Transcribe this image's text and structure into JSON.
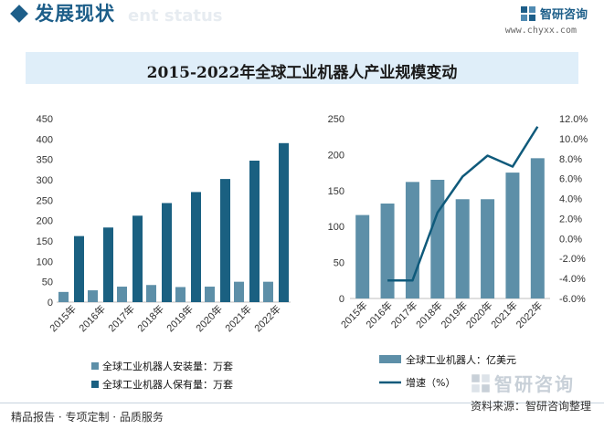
{
  "header": {
    "title": "发展现状",
    "ghost_subtitle": "ent status",
    "brand_name": "智研咨询",
    "brand_url": "www.chyxx.com"
  },
  "main_title": "2015-2022年全球工业机器人产业规模变动",
  "footer": {
    "left_text": "精品报告 · 专项定制 · 品质服务",
    "source": "资料来源：智研咨询整理",
    "logo_name": "智研咨询"
  },
  "colors": {
    "dark_bar": "#1a6081",
    "light_bar": "#5d8fa8",
    "line": "#0f5a7b",
    "title_bg": "#dfeef9",
    "brand": "#1d5e89"
  },
  "chart_data": [
    {
      "type": "bar",
      "categories": [
        "2015年",
        "2016年",
        "2017年",
        "2018年",
        "2019年",
        "2020年",
        "2021年",
        "2022年"
      ],
      "ylim": [
        0,
        450
      ],
      "yticks": [
        0,
        50,
        100,
        150,
        200,
        250,
        300,
        350,
        400,
        450
      ],
      "series": [
        {
          "name": "全球工业机器人安装量：万套",
          "color": "#5d8fa8",
          "values": [
            25,
            29,
            38,
            42,
            37,
            38,
            50,
            50
          ]
        },
        {
          "name": "全球工业机器人保有量：万套",
          "color": "#1a6081",
          "values": [
            162,
            183,
            212,
            243,
            270,
            302,
            347,
            390
          ]
        }
      ],
      "legend_position": "bottom"
    },
    {
      "type": "bar+line",
      "categories": [
        "2015年",
        "2016年",
        "2017年",
        "2018年",
        "2019年",
        "2020年",
        "2021年",
        "2022年"
      ],
      "ylim": [
        0,
        250
      ],
      "yticks": [
        0,
        50,
        100,
        150,
        200,
        250
      ],
      "y2lim": [
        -6.0,
        12.0
      ],
      "y2ticks": [
        "-6.0%",
        "-4.0%",
        "-2.0%",
        "0.0%",
        "2.0%",
        "4.0%",
        "6.0%",
        "8.0%",
        "10.0%",
        "12.0%"
      ],
      "series": [
        {
          "name": "全球工业机器人：亿美元",
          "kind": "bar",
          "color": "#5d8fa8",
          "values": [
            116,
            132,
            162,
            165,
            138,
            138,
            175,
            195
          ]
        },
        {
          "name": "增速（%）",
          "kind": "line",
          "color": "#0f5a7b",
          "axis": "right",
          "values": [
            null,
            -4.2,
            -4.2,
            2.6,
            6.2,
            8.3,
            7.2,
            11.2
          ]
        }
      ],
      "legend_position": "bottom"
    }
  ]
}
